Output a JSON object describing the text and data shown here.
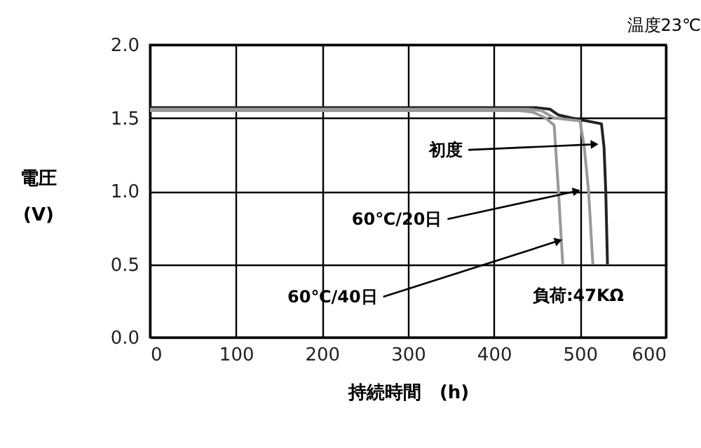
{
  "chart_data": {
    "type": "line",
    "xlabel": "持続時間　(h)",
    "ylabel": "電圧 (V)",
    "xlim": [
      0,
      600
    ],
    "xticks": [
      0,
      100,
      200,
      300,
      400,
      500,
      600
    ],
    "ylim": [
      0,
      2
    ],
    "yticks": [
      {
        "value": 0,
        "label": "0.0"
      },
      {
        "value": 0.5,
        "label": "0.5"
      },
      {
        "value": 1,
        "label": "1.0"
      },
      {
        "value": 1.5,
        "label": "1.5"
      },
      {
        "value": 2,
        "label": "2.0"
      }
    ],
    "grid": true,
    "line_style": "solid",
    "series": [
      {
        "color": "#222222",
        "x": [
          0,
          450,
          465,
          475,
          490,
          525,
          528,
          530,
          532
        ],
        "values": [
          1.57,
          1.57,
          1.56,
          1.52,
          1.5,
          1.46,
          1.3,
          1.0,
          0.5
        ]
      },
      {
        "color": "#999999",
        "x": [
          0,
          440,
          455,
          470,
          500,
          505,
          510,
          515
        ],
        "values": [
          1.56,
          1.56,
          1.55,
          1.5,
          1.48,
          1.3,
          1.0,
          0.5
        ]
      },
      {
        "color": "#999999",
        "x": [
          0,
          430,
          445,
          460,
          470,
          475,
          480
        ],
        "values": [
          1.55,
          1.55,
          1.54,
          1.5,
          1.45,
          1.0,
          0.5
        ]
      }
    ],
    "annotations": [
      {
        "text": "初度",
        "x": 517,
        "y": 1.32
      },
      {
        "text": "60℃/20日",
        "x": 496,
        "y": 1.0
      },
      {
        "text": "60℃/40日",
        "x": 475,
        "y": 0.66
      },
      "負荷:47KΩ",
      "温度23℃"
    ]
  }
}
